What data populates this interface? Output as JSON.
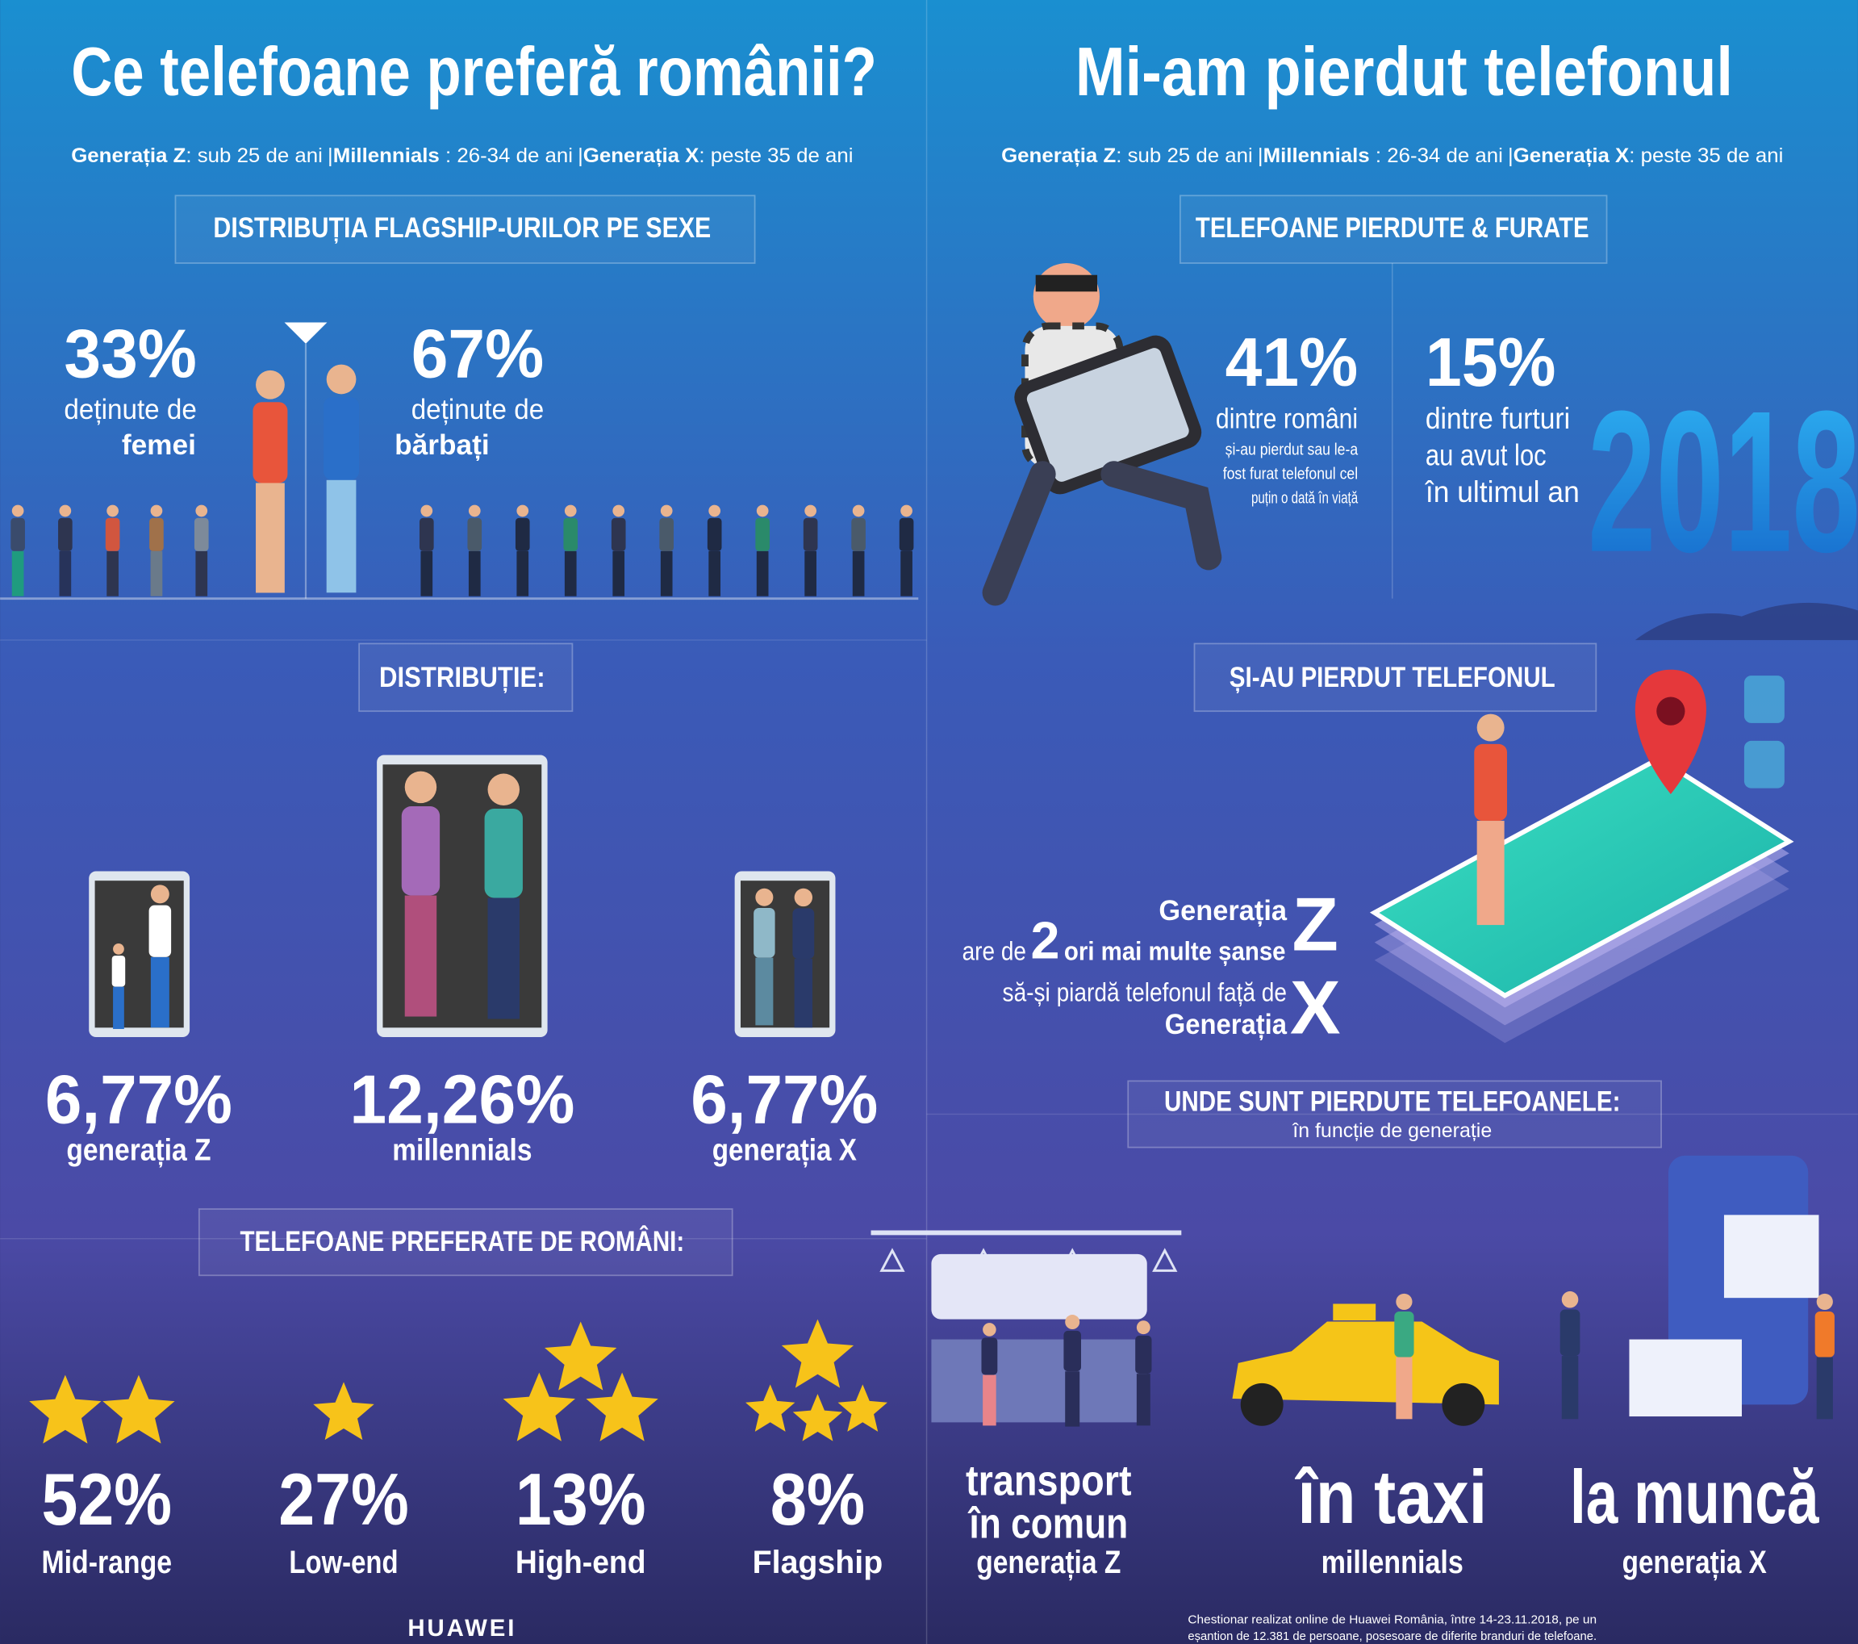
{
  "age_groups": {
    "parts": [
      {
        "name": "Generația Z",
        "desc": ": sub 25 de ani"
      },
      {
        "name": "Millennials",
        "desc": " : 26-34 de ani"
      },
      {
        "name": "Generația X",
        "desc": ": peste 35 de ani"
      }
    ],
    "separator": "|"
  },
  "left": {
    "title": "Ce telefoane preferă românii?",
    "gender": {
      "heading": "DISTRIBUȚIA FLAGSHIP-URILOR  PE SEXE",
      "women": {
        "value": "33%",
        "line1": "deținute de",
        "line2": "femei"
      },
      "men": {
        "value": "67%",
        "line1": "deținute de",
        "line2": "bărbați"
      }
    },
    "distribution": {
      "heading": "DISTRIBUȚIE:",
      "items": [
        {
          "value": "6,77%",
          "label": "generația Z"
        },
        {
          "value": "12,26%",
          "label": "millennials"
        },
        {
          "value": "6,77%",
          "label": "generația X"
        }
      ]
    },
    "preferred": {
      "heading": "TELEFOANE PREFERATE DE ROMÂNI:",
      "items": [
        {
          "value": "52%",
          "label": "Mid-range"
        },
        {
          "value": "27%",
          "label": "Low-end"
        },
        {
          "value": "13%",
          "label": "High-end"
        },
        {
          "value": "8%",
          "label": "Flagship"
        }
      ]
    },
    "brand": "HUAWEI"
  },
  "right": {
    "title": "Mi-am pierdut telefonul",
    "theft": {
      "heading": "TELEFOANE PIERDUTE & FURATE",
      "stat1": {
        "value": "41%",
        "line": "dintre români",
        "notes": [
          "și-au pierdut sau le-a",
          "fost furat telefonul cel",
          "puțin o dată în viață"
        ]
      },
      "stat2": {
        "value": "15%",
        "lines": [
          "dintre furturi",
          "au avut loc",
          "în ultimul an"
        ]
      },
      "year": "2018"
    },
    "lost": {
      "heading": "ȘI-AU PIERDUT TELEFONUL",
      "gen_a": "Generația",
      "letter_a": "Z",
      "pre": "are de",
      "times": "2",
      "post": "ori mai multe șanse",
      "line3": "să-și piardă telefonul față de",
      "gen_b": "Generația",
      "letter_b": "X"
    },
    "where": {
      "heading": "UNDE SUNT PIERDUTE TELEFOANELE:",
      "subheading": "în funcție de generație",
      "items": [
        {
          "place": [
            "transport",
            "în comun"
          ],
          "group": "generația Z"
        },
        {
          "place": [
            "în taxi"
          ],
          "group": "millennials"
        },
        {
          "place": [
            "la muncă"
          ],
          "group": "generația X"
        }
      ]
    },
    "footnote": [
      "Chestionar realizat online de Huawei România, între 14-23.11.2018, pe un",
      "eșantion de 12.381 de persoane, posesoare de diferite branduri de telefoane."
    ]
  }
}
